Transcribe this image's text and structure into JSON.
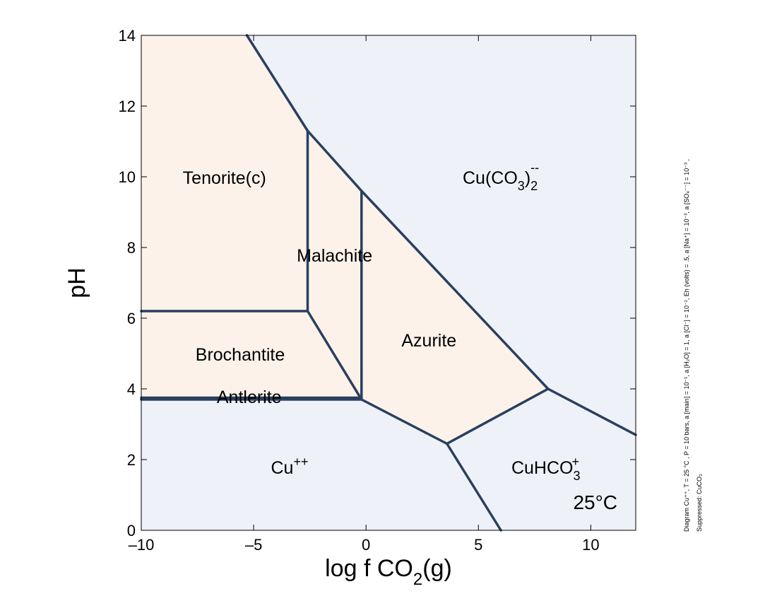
{
  "chart_data": {
    "type": "phase-diagram",
    "x_axis": {
      "label_main": "log f CO",
      "label_sub": "2",
      "label_tail": "(g)",
      "range": [
        -10,
        12
      ],
      "ticks": [
        -10,
        -5,
        0,
        5,
        10
      ],
      "tick_labels": [
        "–10",
        "–5",
        "0",
        "5",
        "10"
      ]
    },
    "y_axis": {
      "label": "pH",
      "range": [
        0,
        14
      ],
      "ticks": [
        0,
        2,
        4,
        6,
        8,
        10,
        12,
        14
      ],
      "tick_labels": [
        "0",
        "2",
        "4",
        "6",
        "8",
        "10",
        "12",
        "14"
      ]
    },
    "colors": {
      "aqueous": "#eef1f8",
      "mineral": "#fcf2ea",
      "boundary": "#2a3f5f"
    },
    "regions": [
      {
        "name": "Tenorite(c)",
        "kind": "mineral",
        "polygon": [
          [
            -10,
            14
          ],
          [
            -5.3,
            14
          ],
          [
            -2.6,
            11.3
          ],
          [
            -2.6,
            6.2
          ],
          [
            -10,
            6.2
          ]
        ]
      },
      {
        "name": "Malachite",
        "kind": "mineral",
        "polygon": [
          [
            -2.6,
            11.3
          ],
          [
            -0.2,
            9.6
          ],
          [
            -0.2,
            3.7
          ],
          [
            -2.6,
            6.2
          ]
        ]
      },
      {
        "name": "Azurite",
        "kind": "mineral",
        "polygon": [
          [
            -0.2,
            9.6
          ],
          [
            8.1,
            4.0
          ],
          [
            3.6,
            2.45
          ],
          [
            -0.2,
            3.7
          ]
        ]
      },
      {
        "name": "Brochantite",
        "kind": "mineral",
        "polygon": [
          [
            -10,
            6.2
          ],
          [
            -2.6,
            6.2
          ],
          [
            -0.2,
            3.7
          ],
          [
            -10,
            3.75
          ]
        ]
      },
      {
        "name": "Antlerite",
        "kind": "mineral",
        "polygon": [
          [
            -10,
            3.75
          ],
          [
            -0.2,
            3.75
          ],
          [
            -0.2,
            3.7
          ],
          [
            -10,
            3.7
          ]
        ]
      }
    ],
    "boundaries": [
      {
        "points": [
          [
            -5.3,
            14
          ],
          [
            -2.6,
            11.3
          ],
          [
            -0.2,
            9.6
          ],
          [
            8.1,
            4.0
          ],
          [
            12,
            2.7
          ]
        ]
      },
      {
        "points": [
          [
            -2.6,
            11.3
          ],
          [
            -2.6,
            6.2
          ]
        ]
      },
      {
        "points": [
          [
            -0.2,
            9.6
          ],
          [
            -0.2,
            3.7
          ]
        ]
      },
      {
        "points": [
          [
            -10,
            6.2
          ],
          [
            -2.6,
            6.2
          ],
          [
            -0.2,
            3.7
          ]
        ]
      },
      {
        "points": [
          [
            -10,
            3.75
          ],
          [
            -0.2,
            3.75
          ]
        ]
      },
      {
        "points": [
          [
            -10,
            3.7
          ],
          [
            -0.2,
            3.7
          ],
          [
            3.6,
            2.45
          ],
          [
            8.1,
            4.0
          ]
        ]
      },
      {
        "points": [
          [
            3.6,
            2.45
          ],
          [
            6.0,
            0
          ]
        ]
      }
    ],
    "labels": [
      {
        "id": "tenorite",
        "text": "Tenorite(c)",
        "x": -6.3,
        "y": 9.8
      },
      {
        "id": "malachite",
        "text": "Malachite",
        "x": -1.4,
        "y": 7.6
      },
      {
        "id": "azurite",
        "text": "Azurite",
        "x": 2.8,
        "y": 5.2
      },
      {
        "id": "brochantite",
        "text": "Brochantite",
        "x": -5.6,
        "y": 4.8
      },
      {
        "id": "antlerite",
        "text": "Antlerite",
        "x": -5.2,
        "y": 3.6
      },
      {
        "id": "cu-ion",
        "text": "Cu",
        "sup": "++",
        "x": -3.4,
        "y": 1.6
      },
      {
        "id": "cuco3-complex",
        "text": "Cu(CO",
        "sub": "3",
        "tail": ")",
        "sub2": "2",
        "sup": "--",
        "x": 6.0,
        "y": 9.8
      },
      {
        "id": "cuhco3",
        "text": "CuHCO",
        "sub": "3",
        "sup": "+",
        "x": 8.0,
        "y": 1.6
      }
    ],
    "temperature_label": "25°C",
    "temperature_pos": {
      "x": 10.2,
      "y": 0.6
    },
    "side_note": {
      "line1": "Diagram Cu⁺⁺, T  =  25 °C , P  =  10 bars, a [main]  =  10⁻¹, a [H₂O]  =  1, a [Cl⁻]  =  10⁻², Eh (volts)  =  .5, a [Na⁺]  =  10⁻³, a [SO₄⁻⁻]  =  10⁻³ ,",
      "line2": "Suppressed: CuCO₃"
    }
  }
}
